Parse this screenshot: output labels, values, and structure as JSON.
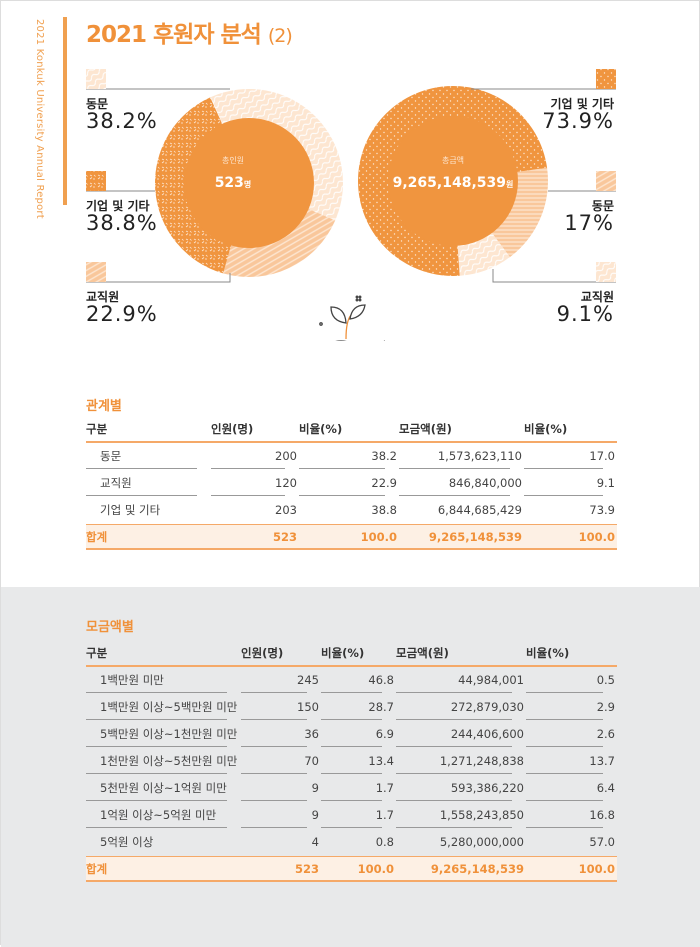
{
  "side_text": "2021 Konkuk University Annual Report",
  "title": {
    "main": "2021 후원자 분석",
    "suffix": "(2)"
  },
  "donut_people": {
    "center_label": "총인원",
    "center_value": "523",
    "center_unit": "명",
    "segments": [
      {
        "label": "동문",
        "value": "38.2%",
        "pct": 38.2,
        "pattern": "wave"
      },
      {
        "label": "교직원",
        "value": "22.9%",
        "pct": 22.9,
        "pattern": "stripe"
      },
      {
        "label": "기업 및 기타",
        "value": "38.8%",
        "pct": 38.8,
        "pattern": "dash"
      }
    ]
  },
  "donut_amount": {
    "center_label": "총금액",
    "center_value": "9,265,148,539",
    "center_unit": "원",
    "segments": [
      {
        "label": "동문",
        "value": "17%",
        "pct": 17,
        "pattern": "hstripe"
      },
      {
        "label": "교직원",
        "value": "9.1%",
        "pct": 9.1,
        "pattern": "wave"
      },
      {
        "label": "기업 및 기타",
        "value": "73.9%",
        "pct": 73.9,
        "pattern": "dots"
      }
    ]
  },
  "colors": {
    "accent": "#f0913a",
    "dark": "#f0953f",
    "mid": "#f9c79b",
    "light": "#fde6d1"
  },
  "relation": {
    "title": "관계별",
    "headers": [
      "구분",
      "인원(명)",
      "비율(%)",
      "모금액(원)",
      "비율(%)"
    ],
    "rows": [
      [
        "동문",
        "200",
        "38.2",
        "1,573,623,110",
        "17.0"
      ],
      [
        "교직원",
        "120",
        "22.9",
        "846,840,000",
        "9.1"
      ],
      [
        "기업 및 기타",
        "203",
        "38.8",
        "6,844,685,429",
        "73.9"
      ]
    ],
    "total": [
      "합계",
      "523",
      "100.0",
      "9,265,148,539",
      "100.0"
    ]
  },
  "amount": {
    "title": "모금액별",
    "headers": [
      "구분",
      "인원(명)",
      "비율(%)",
      "모금액(원)",
      "비율(%)"
    ],
    "rows": [
      [
        "1백만원 미만",
        "245",
        "46.8",
        "44,984,001",
        "0.5"
      ],
      [
        "1백만원 이상~5백만원 미만",
        "150",
        "28.7",
        "272,879,030",
        "2.9"
      ],
      [
        "5백만원 이상~1천만원 미만",
        "36",
        "6.9",
        "244,406,600",
        "2.6"
      ],
      [
        "1천만원 이상~5천만원 미만",
        "70",
        "13.4",
        "1,271,248,838",
        "13.7"
      ],
      [
        "5천만원 이상~1억원 미만",
        "9",
        "1.7",
        "593,386,220",
        "6.4"
      ],
      [
        "1억원 이상~5억원 미만",
        "9",
        "1.7",
        "1,558,243,850",
        "16.8"
      ],
      [
        "5억원 이상",
        "4",
        "0.8",
        "5,280,000,000",
        "57.0"
      ]
    ],
    "total": [
      "합계",
      "523",
      "100.0",
      "9,265,148,539",
      "100.0"
    ]
  }
}
